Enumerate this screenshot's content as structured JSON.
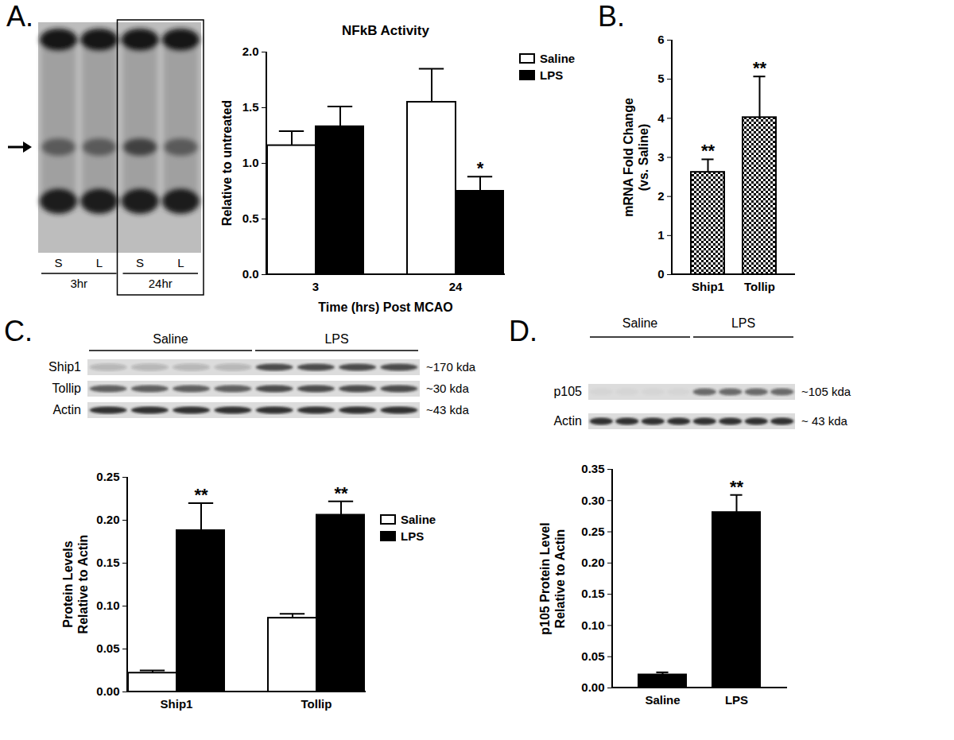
{
  "panel_labels": [
    "A.",
    "B.",
    "C.",
    "D."
  ],
  "blots": [
    {
      "lanes": [
        "S",
        "L",
        "S",
        "L"
      ],
      "groups": [
        {
          "label": "3hr",
          "lanes": 2
        },
        {
          "label": "24hr",
          "lanes": 2
        }
      ]
    },
    {
      "groups": [
        {
          "label": "Saline",
          "lanes": 4
        },
        {
          "label": "LPS",
          "lanes": 4
        }
      ],
      "rows": [
        {
          "name": "Ship1",
          "size": "~170 kda"
        },
        {
          "name": "Tollip",
          "size": "~30 kda"
        },
        {
          "name": "Actin",
          "size": "~43 kda"
        }
      ]
    },
    {
      "groups": [
        {
          "label": "Saline",
          "lanes": 4
        },
        {
          "label": "LPS",
          "lanes": 4
        }
      ],
      "rows": [
        {
          "name": "p105",
          "size": "~105 kda"
        },
        {
          "name": "Actin",
          "size": "~ 43 kda"
        }
      ]
    }
  ],
  "chart_data": [
    {
      "type": "bar",
      "title": "NFkB Activity",
      "x_label": "Time (hrs) Post MCAO",
      "y_label": "Relative to untreated",
      "categories": [
        "3",
        "24"
      ],
      "series": [
        {
          "name": "Saline",
          "color": "#ffffff",
          "values": [
            1.16,
            1.55
          ],
          "errors": [
            0.13,
            0.3
          ]
        },
        {
          "name": "LPS",
          "color": "#000000",
          "values": [
            1.33,
            0.75
          ],
          "errors": [
            0.18,
            0.13
          ]
        }
      ],
      "ylim": [
        0,
        2
      ],
      "yticks": [
        {
          "value": 0,
          "label": "0.0"
        },
        {
          "value": 0.5,
          "label": "0.5"
        },
        {
          "value": 1,
          "label": "1.0"
        },
        {
          "value": 1.5,
          "label": "1.5"
        },
        {
          "value": 2,
          "label": "2.0"
        }
      ],
      "legend": "right",
      "annotations": [
        {
          "category": "24",
          "series": "LPS",
          "text": "*"
        }
      ]
    },
    {
      "type": "bar",
      "y_label": [
        "mRNA Fold Change",
        "(vs. Saline)"
      ],
      "categories": [
        "Ship1",
        "Tollip"
      ],
      "values": [
        2.62,
        4.02
      ],
      "errors": [
        0.33,
        1.05
      ],
      "color": "#000000",
      "ylim": [
        0,
        6
      ],
      "yticks": [
        0,
        1,
        2,
        3,
        4,
        5,
        6
      ],
      "annotations": [
        {
          "category": "Ship1",
          "text": "**"
        },
        {
          "category": "Tollip",
          "text": "**"
        }
      ]
    },
    {
      "type": "bar",
      "y_label": [
        "Protein Levels",
        "Relative to Actin"
      ],
      "categories": [
        "Ship1",
        "Tollip"
      ],
      "series": [
        {
          "name": "Saline",
          "color": "#ffffff",
          "values": [
            0.022,
            0.086
          ],
          "errors": [
            0.003,
            0.005
          ]
        },
        {
          "name": "LPS",
          "color": "#000000",
          "values": [
            0.188,
            0.206
          ],
          "errors": [
            0.032,
            0.016
          ]
        }
      ],
      "ylim": [
        0,
        0.25
      ],
      "yticks": [
        {
          "value": 0,
          "label": "0.00"
        },
        {
          "value": 0.05,
          "label": "0.05"
        },
        {
          "value": 0.1,
          "label": "0.10"
        },
        {
          "value": 0.15,
          "label": "0.15"
        },
        {
          "value": 0.2,
          "label": "0.20"
        },
        {
          "value": 0.25,
          "label": "0.25"
        }
      ],
      "legend": "right",
      "annotations": [
        {
          "category": "Ship1",
          "series": "LPS",
          "text": "**"
        },
        {
          "category": "Tollip",
          "series": "LPS",
          "text": "**"
        }
      ]
    },
    {
      "type": "bar",
      "y_label": [
        "p105 Protein Level",
        "Relative to Actin"
      ],
      "categories": [
        "Saline",
        "LPS"
      ],
      "values": [
        0.021,
        0.281
      ],
      "errors": [
        0.004,
        0.028
      ],
      "color": "#000000",
      "ylim": [
        0,
        0.35
      ],
      "yticks": [
        {
          "value": 0,
          "label": "0.00"
        },
        {
          "value": 0.05,
          "label": "0.05"
        },
        {
          "value": 0.1,
          "label": "0.10"
        },
        {
          "value": 0.15,
          "label": "0.15"
        },
        {
          "value": 0.2,
          "label": "0.20"
        },
        {
          "value": 0.25,
          "label": "0.25"
        },
        {
          "value": 0.3,
          "label": "0.30"
        },
        {
          "value": 0.35,
          "label": "0.35"
        }
      ],
      "annotations": [
        {
          "category": "LPS",
          "text": "**"
        }
      ]
    }
  ]
}
